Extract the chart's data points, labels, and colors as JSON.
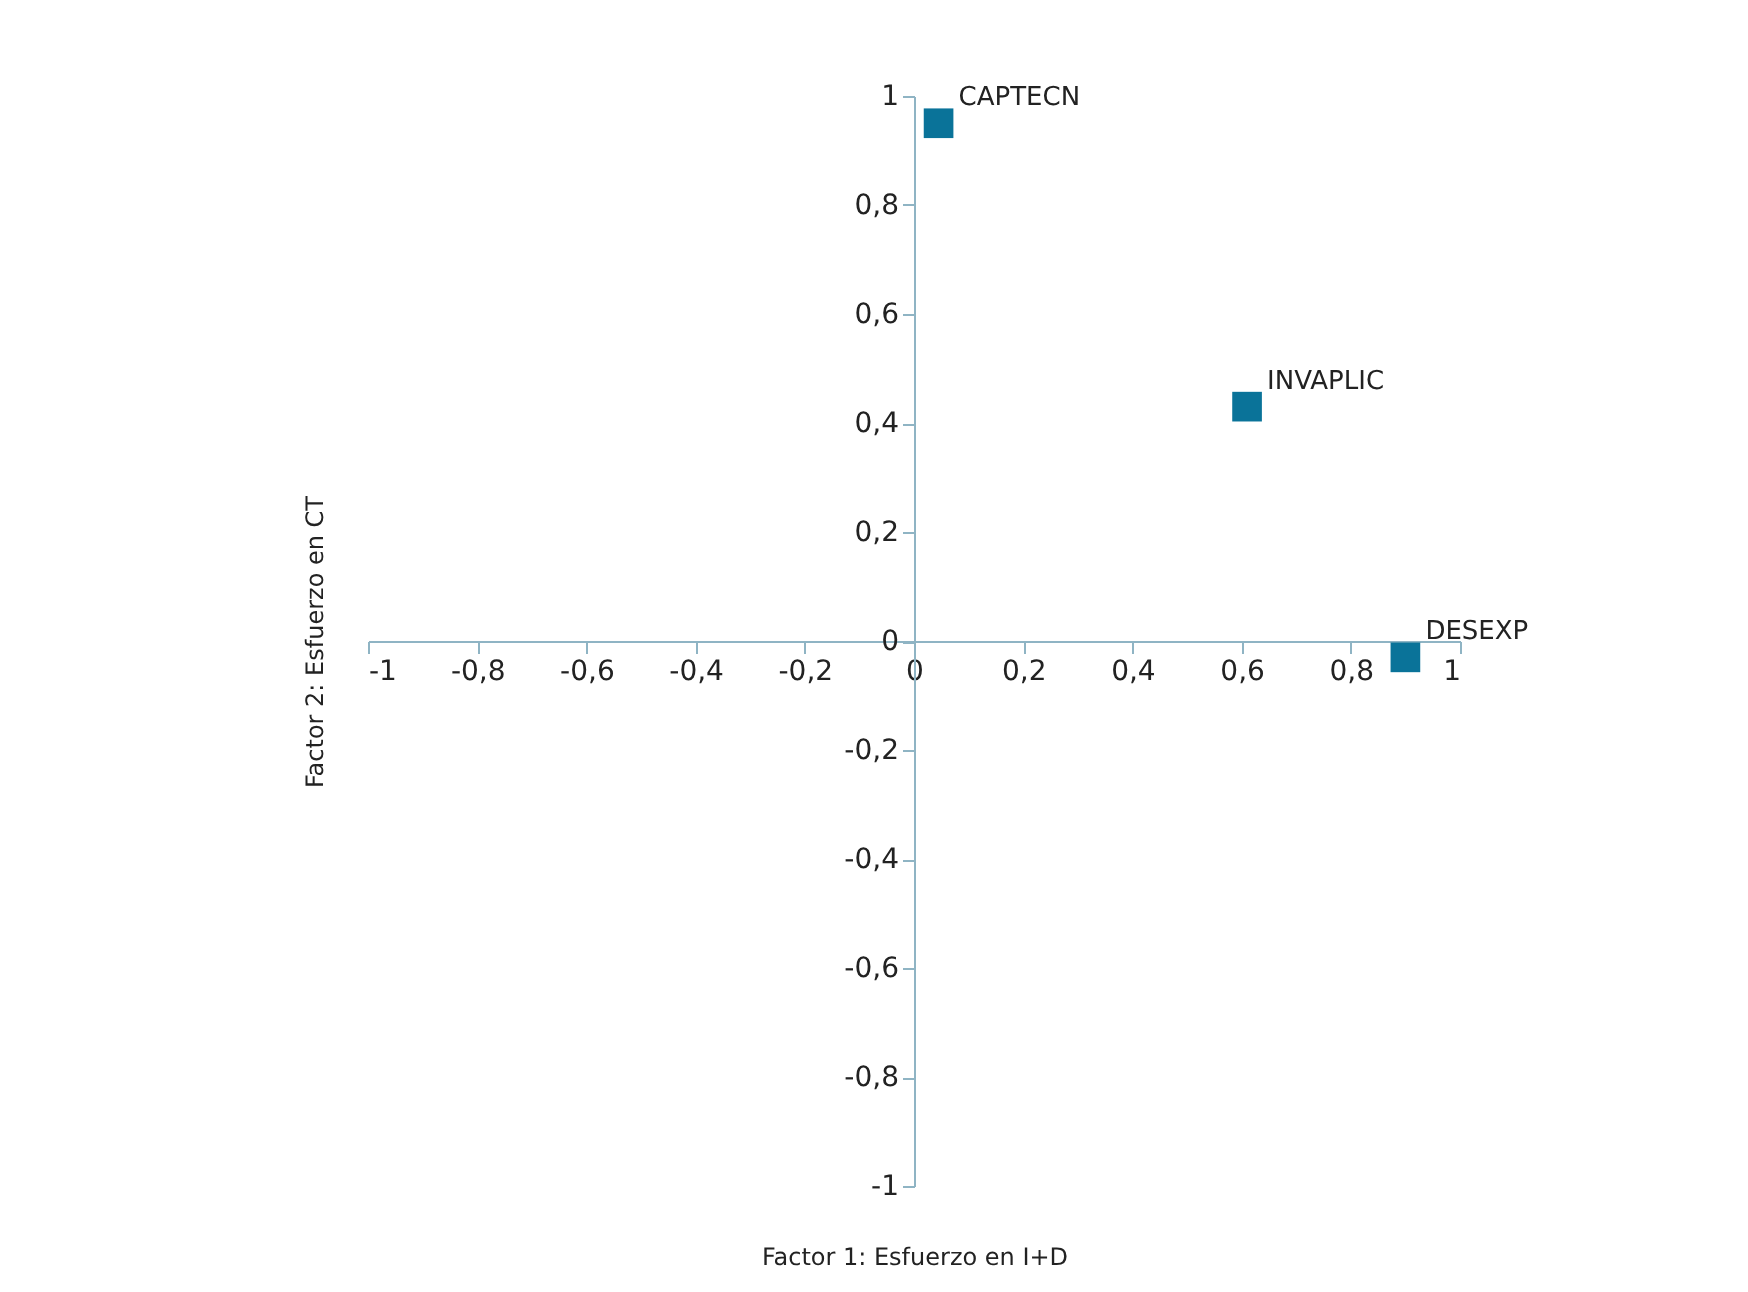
{
  "chart_data": {
    "type": "scatter",
    "xlabel": "Factor 1: Esfuerzo en I+D",
    "ylabel": "Factor 2: Esfuerzo en CT",
    "x": [
      0.045,
      0.61,
      0.9
    ],
    "series": [
      {
        "color": "#0a7399",
        "values": [
          0.95,
          0.43,
          -0.03
        ]
      }
    ],
    "marker": "square",
    "annotations": [
      {
        "text": "CAPTECN",
        "x": 0.045,
        "y": 0.95
      },
      {
        "text": "INVAPLIC",
        "x": 0.61,
        "y": 0.43
      },
      {
        "text": "DESEXP",
        "x": 0.9,
        "y": -0.03
      }
    ],
    "xlim": [
      -1,
      1
    ],
    "ylim": [
      -1,
      1
    ],
    "xticks": [
      -1,
      {
        "value": -0.8,
        "label": "-0,8"
      },
      {
        "value": -0.6,
        "label": "-0,6"
      },
      {
        "value": -0.4,
        "label": "-0,4"
      },
      {
        "value": -0.2,
        "label": "-0,2"
      },
      0,
      {
        "value": 0.2,
        "label": "0,2"
      },
      {
        "value": 0.4,
        "label": "0,4"
      },
      {
        "value": 0.6,
        "label": "0,6"
      },
      {
        "value": 0.8,
        "label": "0,8"
      },
      1
    ],
    "yticks": [
      -1,
      {
        "value": -0.8,
        "label": "-0,8"
      },
      {
        "value": -0.6,
        "label": "-0,6"
      },
      {
        "value": -0.4,
        "label": "-0,4"
      },
      {
        "value": -0.2,
        "label": "-0,2"
      },
      0,
      {
        "value": 0.2,
        "label": "0,2"
      },
      {
        "value": 0.4,
        "label": "0,4"
      },
      {
        "value": 0.6,
        "label": "0,6"
      },
      {
        "value": 0.8,
        "label": "0,8"
      },
      1
    ],
    "grid": false
  }
}
